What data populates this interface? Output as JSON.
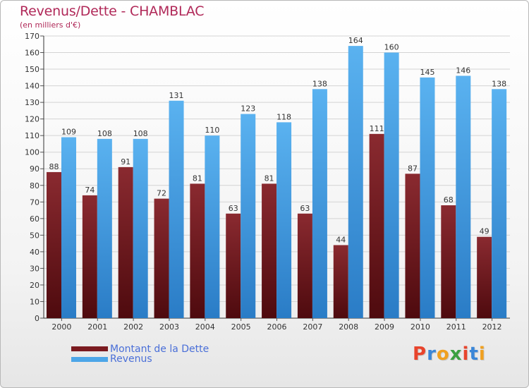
{
  "chart_data": {
    "type": "bar",
    "title": "Revenus/Dette - CHAMBLAC",
    "subtitle": "(en milliers d'€)",
    "categories": [
      "2000",
      "2001",
      "2002",
      "2003",
      "2004",
      "2005",
      "2006",
      "2007",
      "2008",
      "2009",
      "2010",
      "2011",
      "2012"
    ],
    "series": [
      {
        "name": "Montant de la Dette",
        "color": "#7a1a1f",
        "values": [
          88,
          74,
          91,
          72,
          81,
          63,
          81,
          63,
          44,
          111,
          87,
          68,
          49
        ]
      },
      {
        "name": "Revenus",
        "color": "#4da6e8",
        "values": [
          109,
          108,
          108,
          131,
          110,
          123,
          118,
          138,
          164,
          160,
          145,
          146,
          138
        ]
      }
    ],
    "yticks": [
      0,
      10,
      20,
      30,
      40,
      50,
      60,
      70,
      80,
      90,
      100,
      110,
      120,
      130,
      140,
      150,
      160,
      170
    ],
    "ylim": [
      0,
      170
    ],
    "grid": true,
    "legend_position": "bottom-left"
  },
  "logo": {
    "letters": [
      "P",
      "r",
      "o",
      "x",
      "i",
      "t",
      "i"
    ],
    "colors": [
      "#e8442c",
      "#3a86d8",
      "#f0a020",
      "#3aa040",
      "#e8442c",
      "#3a86d8",
      "#f0a020"
    ]
  }
}
